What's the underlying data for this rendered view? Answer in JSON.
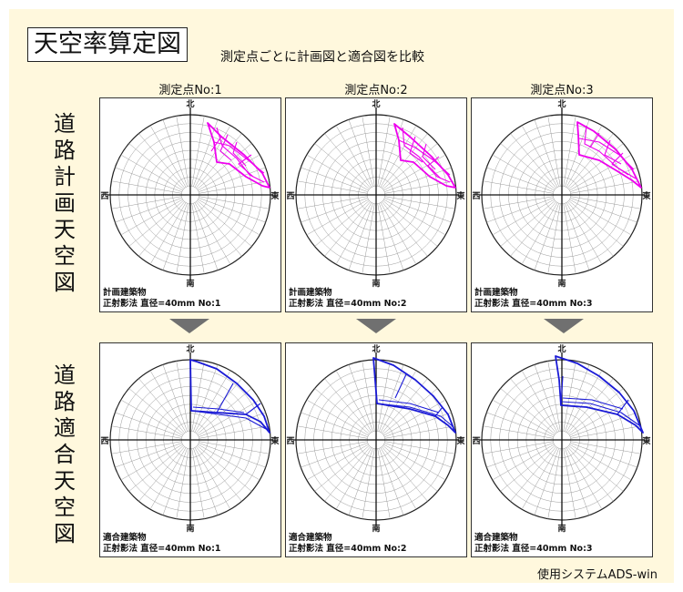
{
  "title": "天空率算定図",
  "subtitle": "測定点ごとに計画図と適合図を比較",
  "columns": [
    "測定点No:1",
    "測定点No:2",
    "測定点No:3"
  ],
  "rows": [
    {
      "label": "道路計画天空図",
      "caption_line1": "計画建築物",
      "color": "#ee00ee"
    },
    {
      "label": "道路適合天空図",
      "caption_line1": "適合建築物",
      "color": "#1a1ad6"
    }
  ],
  "captions_line2": [
    "正射影法 直径=40mm No:1",
    "正射影法 直径=40mm No:2",
    "正射影法 直径=40mm No:3"
  ],
  "directions": {
    "north": "北",
    "south": "南",
    "east": "東",
    "west": "西"
  },
  "footer": "使用システムADS-win"
}
